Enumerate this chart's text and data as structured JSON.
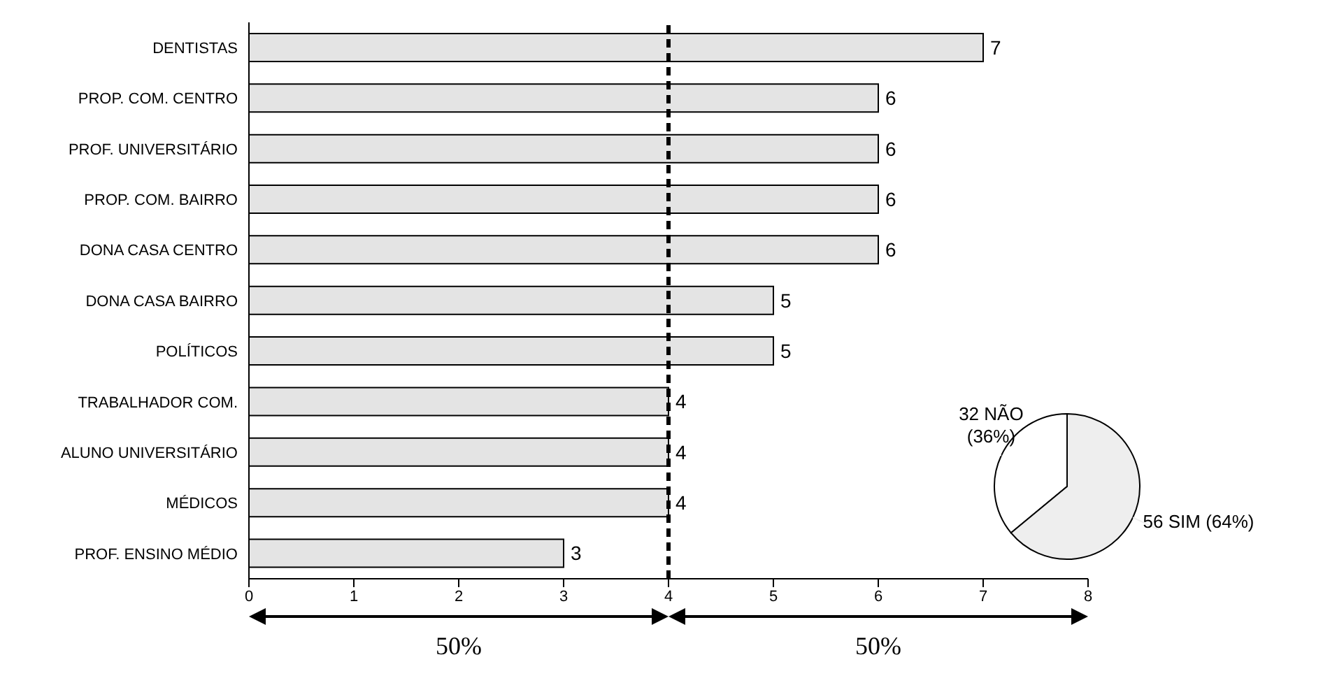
{
  "chart_data": [
    {
      "type": "bar",
      "orientation": "horizontal",
      "categories": [
        "DENTISTAS",
        "PROP. COM. CENTRO",
        "PROF. UNIVERSITÁRIO",
        "PROP. COM. BAIRRO",
        "DONA CASA CENTRO",
        "DONA CASA BAIRRO",
        "POLÍTICOS",
        "TRABALHADOR  COM.",
        "ALUNO UNIVERSITÁRIO",
        "MÉDICOS",
        "PROF. ENSINO MÉDIO"
      ],
      "values": [
        7,
        6,
        6,
        6,
        6,
        5,
        5,
        4,
        4,
        4,
        3
      ],
      "color": "#e4e4e4",
      "data_labels": true,
      "xlim": [
        0,
        8
      ],
      "xticks": [
        0,
        1,
        2,
        3,
        4,
        5,
        6,
        7,
        8
      ],
      "ref_lines": [
        {
          "axis": "x",
          "value": 4,
          "color": "#000000",
          "line_style": "dashed"
        }
      ],
      "annotations": [
        {
          "text": "50%"
        },
        {
          "text": "50%"
        }
      ]
    },
    {
      "type": "pie",
      "categories": [
        "32 NÃO",
        "56 SIM"
      ],
      "values": [
        36,
        64
      ],
      "value_labels": [
        "(36%)",
        "(64%)"
      ],
      "colors": [
        "#ffffff",
        "#eeeeee"
      ]
    }
  ]
}
